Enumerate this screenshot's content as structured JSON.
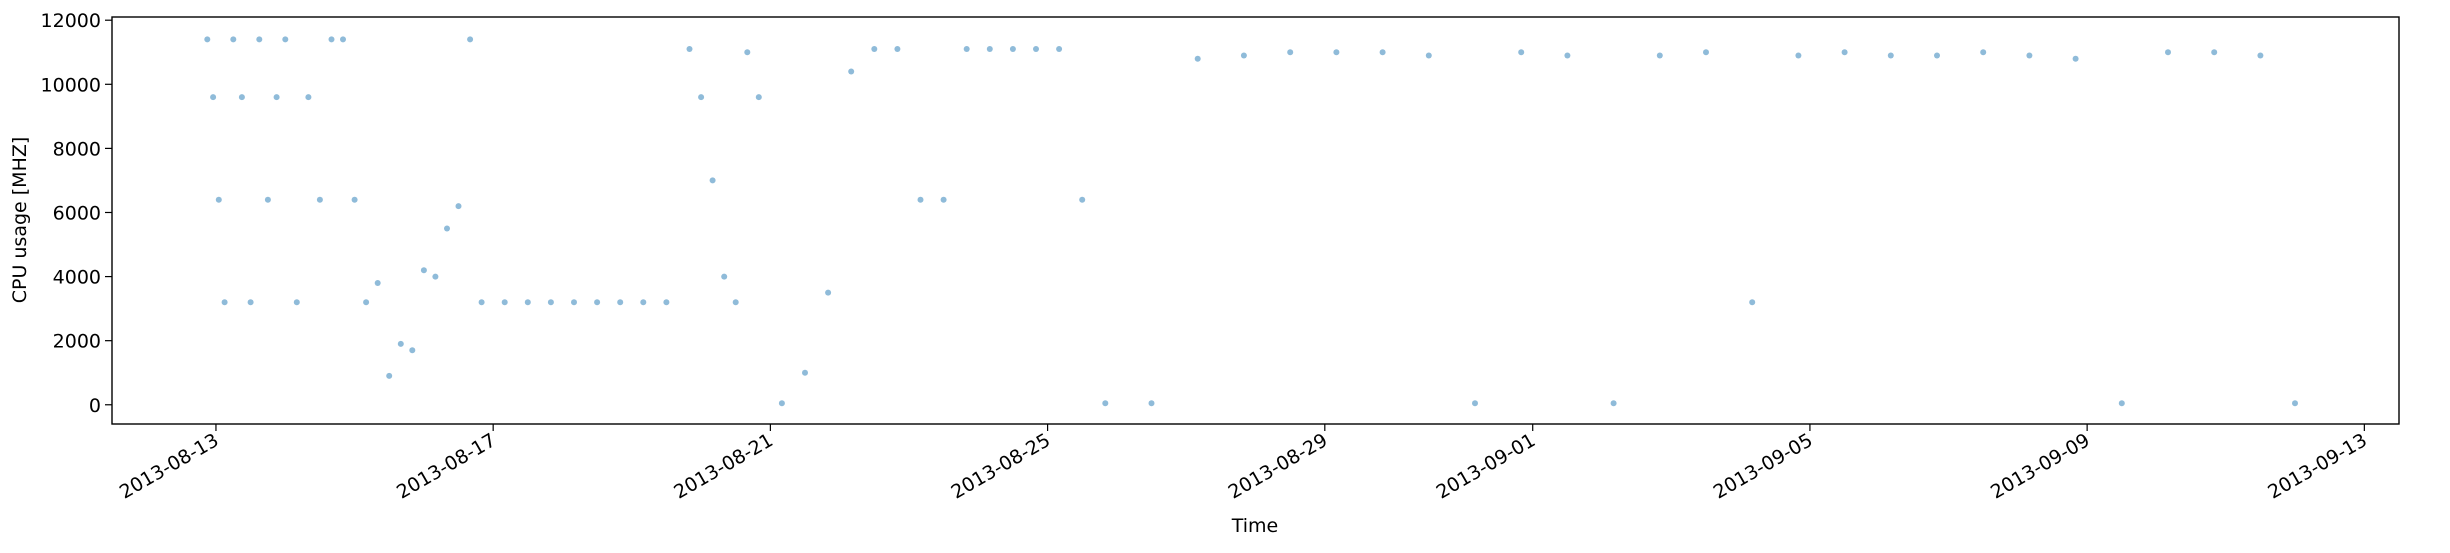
{
  "chart_data": {
    "type": "scatter",
    "title": "",
    "xlabel": "Time",
    "ylabel": "CPU usage [MHZ]",
    "x_axis_type": "date",
    "xlim": [
      "2013-08-11T12:00",
      "2013-09-13T12:00"
    ],
    "ylim": [
      -600,
      12100
    ],
    "grid": false,
    "legend": "none",
    "marker_color": "#1f77b4",
    "marker_alpha": 0.5,
    "x_ticks": [
      "2013-08-13",
      "2013-08-17",
      "2013-08-21",
      "2013-08-25",
      "2013-08-29",
      "2013-09-01",
      "2013-09-05",
      "2013-09-09",
      "2013-09-13"
    ],
    "y_ticks": [
      0,
      2000,
      4000,
      6000,
      8000,
      10000,
      12000
    ],
    "y_tick_labels": [
      "0",
      "2000",
      "4000",
      "6000",
      "8000",
      "10000",
      "12000"
    ],
    "series": [
      {
        "x": [
          "2013-08-12T21:00",
          "2013-08-12T23:00",
          "2013-08-13T01:00",
          "2013-08-13T03:00",
          "2013-08-13T06:00",
          "2013-08-13T09:00",
          "2013-08-13T12:00",
          "2013-08-13T15:00",
          "2013-08-13T18:00",
          "2013-08-13T21:00",
          "2013-08-14T00:00",
          "2013-08-14T04:00",
          "2013-08-14T08:00",
          "2013-08-14T12:00",
          "2013-08-14T16:00",
          "2013-08-14T20:00",
          "2013-08-15T00:00",
          "2013-08-15T04:00",
          "2013-08-15T08:00",
          "2013-08-15T12:00",
          "2013-08-15T16:00",
          "2013-08-15T20:00",
          "2013-08-16T00:00",
          "2013-08-16T04:00",
          "2013-08-16T08:00",
          "2013-08-16T12:00",
          "2013-08-16T16:00",
          "2013-08-16T20:00",
          "2013-08-17T04:00",
          "2013-08-17T12:00",
          "2013-08-17T20:00",
          "2013-08-18T04:00",
          "2013-08-18T12:00",
          "2013-08-18T20:00",
          "2013-08-19T04:00",
          "2013-08-19T12:00",
          "2013-08-19T20:00",
          "2013-08-20T00:00",
          "2013-08-20T04:00",
          "2013-08-20T08:00",
          "2013-08-20T12:00",
          "2013-08-20T16:00",
          "2013-08-20T20:00",
          "2013-08-21T04:00",
          "2013-08-21T12:00",
          "2013-08-21T20:00",
          "2013-08-22T04:00",
          "2013-08-22T12:00",
          "2013-08-22T20:00",
          "2013-08-23T04:00",
          "2013-08-23T12:00",
          "2013-08-23T20:00",
          "2013-08-24T04:00",
          "2013-08-24T12:00",
          "2013-08-24T20:00",
          "2013-08-25T04:00",
          "2013-08-25T12:00",
          "2013-08-25T20:00",
          "2013-08-26T12:00",
          "2013-08-27T04:00",
          "2013-08-27T20:00",
          "2013-08-28T12:00",
          "2013-08-29T04:00",
          "2013-08-29T20:00",
          "2013-08-30T12:00",
          "2013-08-31T04:00",
          "2013-08-31T20:00",
          "2013-09-01T12:00",
          "2013-09-02T04:00",
          "2013-09-02T20:00",
          "2013-09-03T12:00",
          "2013-09-04T04:00",
          "2013-09-04T20:00",
          "2013-09-05T12:00",
          "2013-09-06T04:00",
          "2013-09-06T20:00",
          "2013-09-07T12:00",
          "2013-09-08T04:00",
          "2013-09-08T20:00",
          "2013-09-09T12:00",
          "2013-09-10T04:00",
          "2013-09-10T20:00",
          "2013-09-11T12:00",
          "2013-09-12T00:00"
        ],
        "y": [
          11400,
          9600,
          6400,
          3200,
          11400,
          9600,
          3200,
          11400,
          6400,
          9600,
          11400,
          3200,
          9600,
          6400,
          11400,
          11400,
          6400,
          3200,
          3800,
          900,
          1900,
          1700,
          4200,
          4000,
          5500,
          6200,
          11400,
          3200,
          3200,
          3200,
          3200,
          3200,
          3200,
          3200,
          3200,
          3200,
          11100,
          9600,
          7000,
          4000,
          3200,
          11000,
          9600,
          50,
          1000,
          3500,
          10400,
          11100,
          11100,
          6400,
          6400,
          11100,
          11100,
          11100,
          11100,
          11100,
          6400,
          50,
          50,
          10800,
          10900,
          11000,
          11000,
          11000,
          10900,
          50,
          11000,
          10900,
          50,
          10900,
          11000,
          3200,
          10900,
          11000,
          10900,
          10900,
          11000,
          10900,
          10800,
          50,
          11000,
          11000,
          10900,
          50
        ]
      }
    ]
  }
}
